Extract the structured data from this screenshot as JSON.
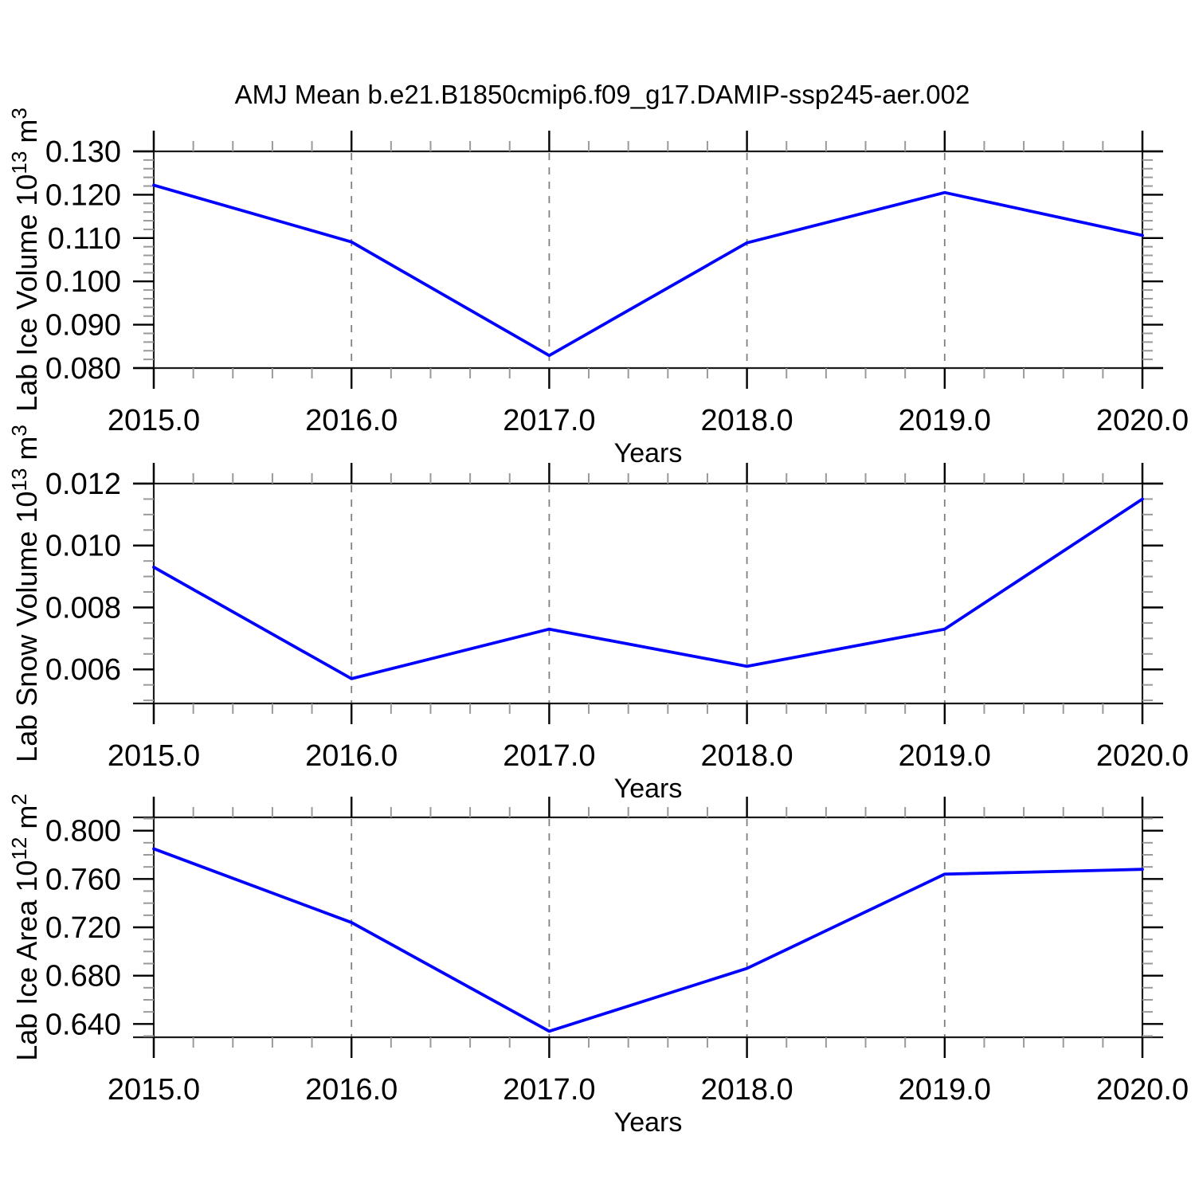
{
  "title": "AMJ Mean b.e21.B1850cmip6.f09_g17.DAMIP-ssp245-aer.002",
  "colors": {
    "line": "#0000ff",
    "frame": "#1a1a1a",
    "major_tick": "#000000",
    "minor_tick": "#9a9a9a",
    "gridline": "#808080",
    "background": "#ffffff",
    "text": "#000000"
  },
  "chart_data": [
    {
      "type": "line",
      "name": "ice-volume",
      "ylabel_parts": [
        {
          "t": "Lab Ice Volume 10"
        },
        {
          "t": "13",
          "sup": true
        },
        {
          "t": " m"
        },
        {
          "t": "3",
          "sup": true
        }
      ],
      "ylabel_text": "Lab Ice Volume 10¹³ m³",
      "xlabel": "Years",
      "x": [
        2015,
        2016,
        2017,
        2018,
        2019,
        2020
      ],
      "values": [
        0.1222,
        0.1091,
        0.0829,
        0.1089,
        0.1205,
        0.1106
      ],
      "xlim": [
        2015,
        2020
      ],
      "ylim": [
        0.08,
        0.13
      ],
      "xticks": {
        "values": [
          2015,
          2016,
          2017,
          2018,
          2019,
          2020
        ],
        "labels": [
          "2015.0",
          "2016.0",
          "2017.0",
          "2018.0",
          "2019.0",
          "2020.0"
        ]
      },
      "xminor_step": 0.2,
      "yticks": {
        "values": [
          0.08,
          0.09,
          0.1,
          0.11,
          0.12,
          0.13
        ],
        "labels": [
          "0.080",
          "0.090",
          "0.100",
          "0.110",
          "0.120",
          "0.130"
        ]
      },
      "yminor_step": 0.002,
      "grid_x": [
        2016,
        2017,
        2018,
        2019
      ],
      "grid_style": "dashed-vertical"
    },
    {
      "type": "line",
      "name": "snow-volume",
      "ylabel_parts": [
        {
          "t": "Lab Snow Volume 10"
        },
        {
          "t": "13",
          "sup": true
        },
        {
          "t": " m"
        },
        {
          "t": "3",
          "sup": true
        }
      ],
      "ylabel_text": "Lab Snow Volume 10¹³ m³",
      "xlabel": "Years",
      "x": [
        2015,
        2016,
        2017,
        2018,
        2019,
        2020
      ],
      "values": [
        0.0093,
        0.0057,
        0.0073,
        0.0061,
        0.0073,
        0.0115
      ],
      "xlim": [
        2015,
        2020
      ],
      "ylim": [
        0.0049,
        0.012
      ],
      "xticks": {
        "values": [
          2015,
          2016,
          2017,
          2018,
          2019,
          2020
        ],
        "labels": [
          "2015.0",
          "2016.0",
          "2017.0",
          "2018.0",
          "2019.0",
          "2020.0"
        ]
      },
      "xminor_step": 0.2,
      "yticks": {
        "values": [
          0.006,
          0.008,
          0.01,
          0.012
        ],
        "labels": [
          "0.006",
          "0.008",
          "0.010",
          "0.012"
        ]
      },
      "yminor_step": 0.0005,
      "grid_x": [
        2016,
        2017,
        2018,
        2019
      ],
      "grid_style": "dashed-vertical"
    },
    {
      "type": "line",
      "name": "ice-area",
      "ylabel_parts": [
        {
          "t": "Lab Ice Area 10"
        },
        {
          "t": "12",
          "sup": true
        },
        {
          "t": " m"
        },
        {
          "t": "2",
          "sup": true
        }
      ],
      "ylabel_text": "Lab Ice Area 10¹² m²",
      "xlabel": "Years",
      "x": [
        2015,
        2016,
        2017,
        2018,
        2019,
        2020
      ],
      "values": [
        0.785,
        0.724,
        0.634,
        0.686,
        0.764,
        0.768
      ],
      "xlim": [
        2015,
        2020
      ],
      "ylim": [
        0.629,
        0.811
      ],
      "xticks": {
        "values": [
          2015,
          2016,
          2017,
          2018,
          2019,
          2020
        ],
        "labels": [
          "2015.0",
          "2016.0",
          "2017.0",
          "2018.0",
          "2019.0",
          "2020.0"
        ]
      },
      "xminor_step": 0.2,
      "yticks": {
        "values": [
          0.64,
          0.68,
          0.72,
          0.76,
          0.8
        ],
        "labels": [
          "0.640",
          "0.680",
          "0.720",
          "0.760",
          "0.800"
        ]
      },
      "yminor_step": 0.01,
      "grid_x": [
        2016,
        2017,
        2018,
        2019
      ],
      "grid_style": "dashed-vertical"
    }
  ]
}
